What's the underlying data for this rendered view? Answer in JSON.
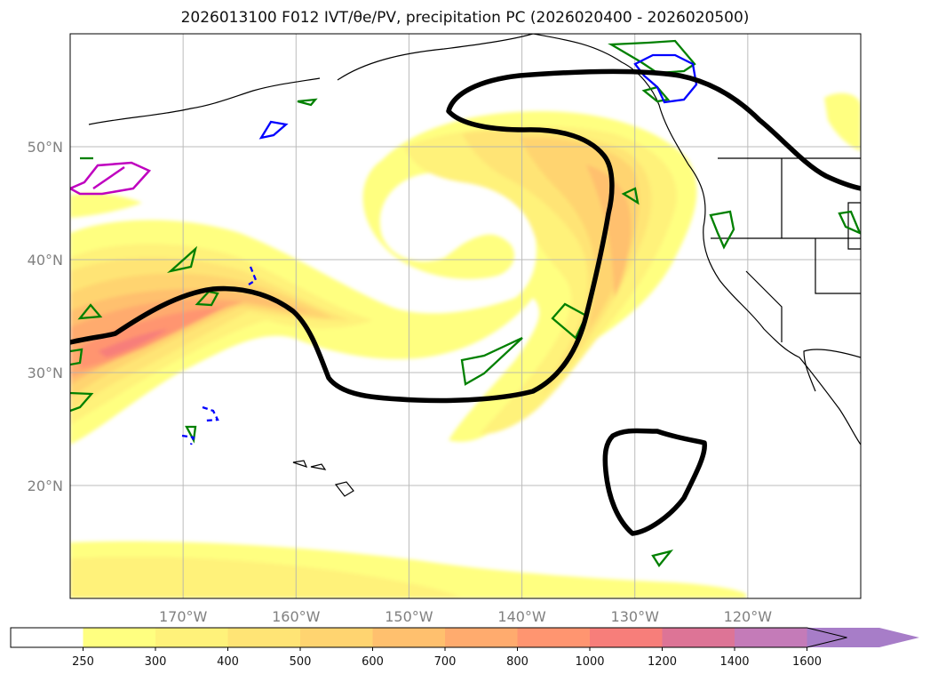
{
  "title": {
    "init": "2026013100",
    "forecast": "F012",
    "fields": "IVT/θe/PV, precipitation PC",
    "valid": "(2026020400 - 2026020500)"
  },
  "map": {
    "projection": "PlateCarree",
    "lon_range": [
      -180,
      -110
    ],
    "lat_range": [
      10,
      60
    ],
    "lon_ticks": [
      {
        "lon": -170,
        "label": "170°W"
      },
      {
        "lon": -160,
        "label": "160°W"
      },
      {
        "lon": -150,
        "label": "150°W"
      },
      {
        "lon": -140,
        "label": "140°W"
      },
      {
        "lon": -130,
        "label": "130°W"
      },
      {
        "lon": -120,
        "label": "120°W"
      }
    ],
    "lat_ticks": [
      {
        "lat": 50,
        "label": "50°N"
      },
      {
        "lat": 40,
        "label": "40°N"
      },
      {
        "lat": 30,
        "label": "30°N"
      },
      {
        "lat": 20,
        "label": "20°N"
      }
    ],
    "gridlines": true
  },
  "colorbar": {
    "extend": "max",
    "levels": [
      "250",
      "300",
      "400",
      "500",
      "600",
      "700",
      "800",
      "1000",
      "1200",
      "1400",
      "1600"
    ],
    "colors": [
      "#ffff80",
      "#fff27a",
      "#ffe475",
      "#ffd470",
      "#ffc06e",
      "#ffab6e",
      "#ff9570",
      "#f77e7a",
      "#dd7496",
      "#c47bb8",
      "#a77dc8"
    ],
    "under_color": "#ffffff"
  },
  "legend_colors": {
    "black_contour": "#000000",
    "green_contour": "#008000",
    "blue_contour": "#0000ff",
    "magenta_contour": "#bf00bf"
  }
}
